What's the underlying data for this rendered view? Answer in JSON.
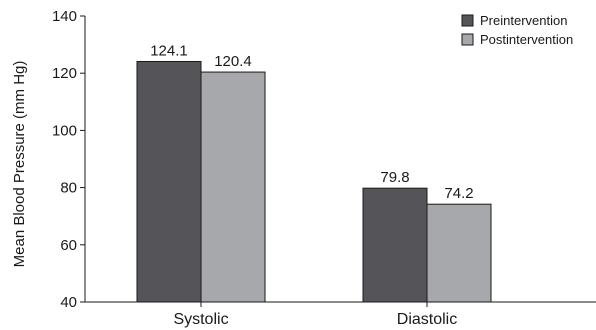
{
  "chart_data": {
    "type": "bar",
    "title": "",
    "xlabel": "",
    "ylabel": "Mean Blood Pressure (mm Hg)",
    "ylim": [
      40,
      140
    ],
    "yticks": [
      40,
      60,
      80,
      100,
      120,
      140
    ],
    "categories": [
      "Systolic",
      "Diastolic"
    ],
    "series": [
      {
        "name": "Preintervention",
        "values": [
          124.1,
          79.8
        ],
        "value_labels": [
          "124.1",
          "79.8"
        ],
        "color": "#555559"
      },
      {
        "name": "Postintervention",
        "values": [
          120.4,
          74.2
        ],
        "value_labels": [
          "120.4",
          "74.2"
        ],
        "color": "#a7a8ab"
      }
    ],
    "grid": false,
    "legend_position": "top-right"
  }
}
